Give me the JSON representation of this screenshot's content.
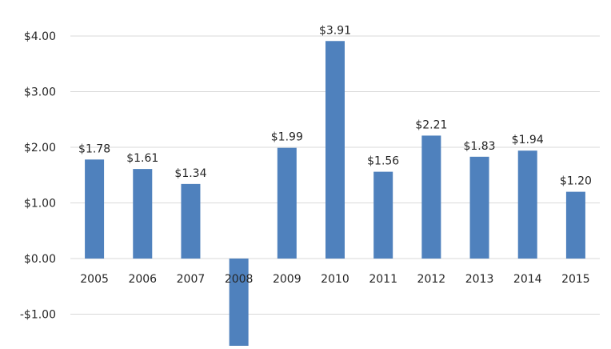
{
  "chart_data": {
    "type": "bar",
    "categories": [
      "2005",
      "2006",
      "2007",
      "2008",
      "2009",
      "2010",
      "2011",
      "2012",
      "2013",
      "2014",
      "2015"
    ],
    "values": [
      1.78,
      1.61,
      1.34,
      -1.57,
      1.99,
      3.91,
      1.56,
      2.21,
      1.83,
      1.94,
      1.2
    ],
    "data_labels": [
      "$1.78",
      "$1.61",
      "$1.34",
      "",
      "$1.99",
      "$3.91",
      "$1.56",
      "$2.21",
      "$1.83",
      "$1.94",
      "$1.20"
    ],
    "y_ticks": [
      -1,
      0,
      1,
      2,
      3,
      4
    ],
    "y_tick_labels": [
      "-$1.00",
      "$0.00",
      "$1.00",
      "$2.00",
      "$3.00",
      "$4.00"
    ],
    "ylim": [
      -1.57,
      4.4
    ],
    "title": "",
    "xlabel": "",
    "ylabel": "",
    "grid": true,
    "legend": "none",
    "bar_color": "#4f81bd",
    "grid_color": "#d9d9d9"
  }
}
